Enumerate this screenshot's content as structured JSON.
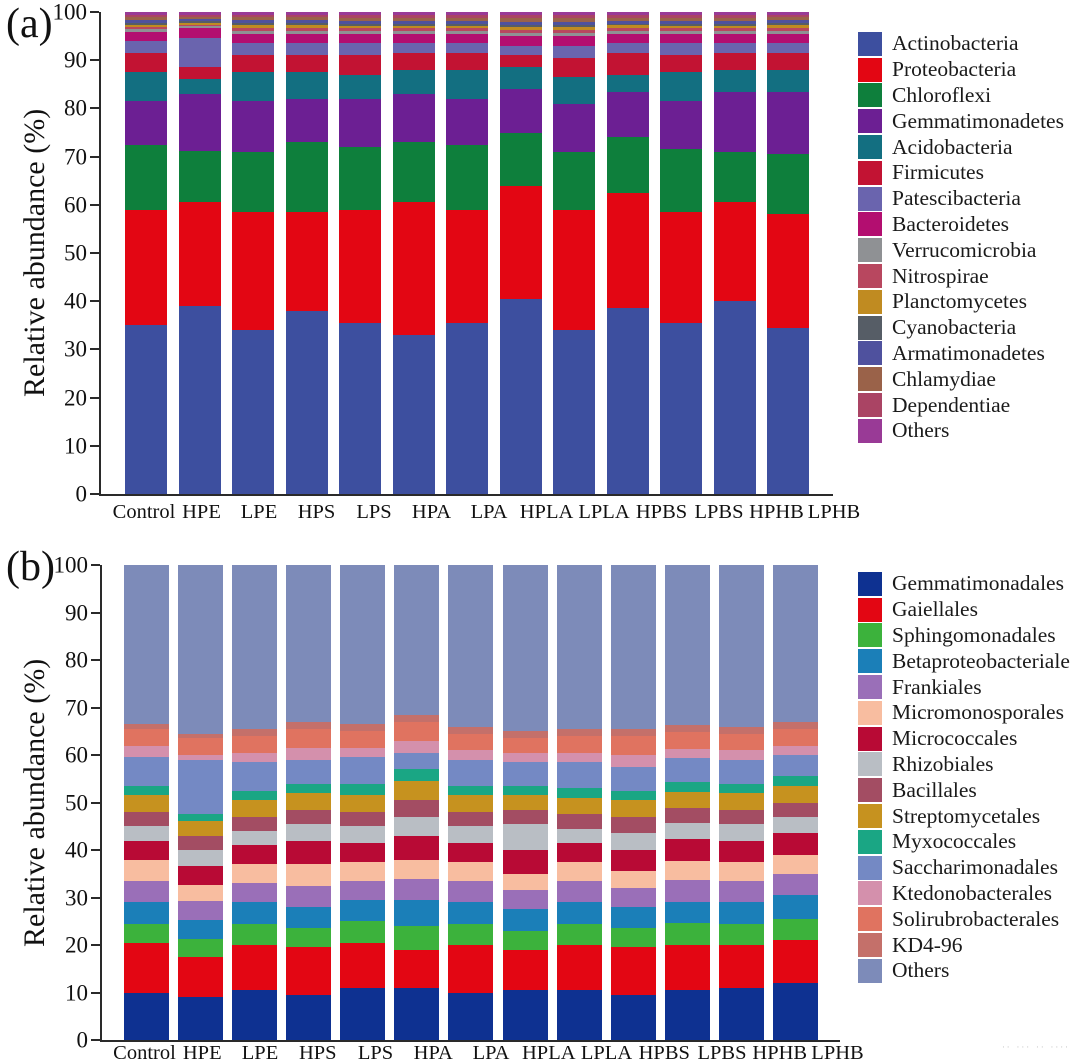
{
  "figure": {
    "watermark_text": "·· ··· ·· ····"
  },
  "chart_data": [
    {
      "panel_label": "(a)",
      "type": "bar",
      "subtype": "100-percent-stacked-vertical",
      "ylabel": "Relative abundance (%)",
      "xlabel": "",
      "ylim": [
        0,
        100
      ],
      "yticks": [
        0,
        10,
        20,
        30,
        40,
        50,
        60,
        70,
        80,
        90,
        100
      ],
      "grid": false,
      "legend_position": "right",
      "categories": [
        "Control",
        "HPE",
        "LPE",
        "HPS",
        "LPS",
        "HPA",
        "LPA",
        "HPLA",
        "LPLA",
        "HPBS",
        "LPBS",
        "HPHB",
        "LPHB"
      ],
      "series": [
        {
          "name": "Actinobacteria",
          "color": "#3D4F9F",
          "values": [
            35,
            39,
            34,
            38,
            35.5,
            33,
            35.5,
            40.5,
            34,
            38.5,
            35.5,
            40,
            34.5
          ]
        },
        {
          "name": "Proteobacteria",
          "color": "#E30613",
          "values": [
            24,
            21.5,
            24.5,
            20.5,
            23.5,
            27.5,
            23.5,
            23.5,
            25,
            24,
            23,
            20.5,
            23.5
          ]
        },
        {
          "name": "Chloroflexi",
          "color": "#0E7F3C",
          "values": [
            13.5,
            10.5,
            12.5,
            14.5,
            13,
            12.5,
            13.5,
            11,
            12,
            11.5,
            13,
            10.5,
            12.5
          ]
        },
        {
          "name": "Gemmatimonadetes",
          "color": "#6C1F93",
          "values": [
            9,
            12,
            10.5,
            9,
            10,
            10,
            9.5,
            9,
            10,
            9.5,
            10,
            12.5,
            13
          ]
        },
        {
          "name": "Acidobacteria",
          "color": "#136F81",
          "values": [
            6,
            3,
            6,
            5.5,
            5,
            5,
            6,
            4.5,
            5.5,
            3.5,
            6,
            4.5,
            4.5
          ]
        },
        {
          "name": "Firmicutes",
          "color": "#C21333",
          "values": [
            4,
            2.5,
            3.5,
            3.5,
            4,
            3.5,
            3.5,
            2.5,
            4,
            4.5,
            3.5,
            3.5,
            3.5
          ]
        },
        {
          "name": "Patescibacteria",
          "color": "#6A64AE",
          "values": [
            2.5,
            6,
            2.5,
            2.5,
            2.5,
            2,
            2,
            2,
            2.5,
            2,
            2.5,
            2,
            2
          ]
        },
        {
          "name": "Bacteroidetes",
          "color": "#B30E70",
          "values": [
            1.8,
            2,
            2,
            2,
            2,
            2,
            2,
            2,
            2,
            2,
            2,
            2,
            2
          ]
        },
        {
          "name": "Verrucomicrobia",
          "color": "#8F9194",
          "values": [
            0.6,
            0.4,
            0.6,
            0.6,
            0.6,
            0.6,
            0.6,
            0.7,
            0.7,
            0.6,
            0.6,
            0.6,
            0.6
          ]
        },
        {
          "name": "Nitrospirae",
          "color": "#B8475F",
          "values": [
            0.5,
            0.4,
            0.6,
            0.6,
            0.5,
            0.5,
            0.5,
            0.6,
            0.6,
            0.5,
            0.5,
            0.5,
            0.6
          ]
        },
        {
          "name": "Planctomycetes",
          "color": "#C08B21",
          "values": [
            0.5,
            0.4,
            0.6,
            0.6,
            0.6,
            0.6,
            0.6,
            0.6,
            0.6,
            0.6,
            0.6,
            0.6,
            0.6
          ]
        },
        {
          "name": "Cyanobacteria",
          "color": "#565D66",
          "values": [
            0.4,
            0.3,
            0.4,
            0.4,
            0.4,
            0.4,
            0.4,
            0.5,
            0.5,
            0.4,
            0.4,
            0.4,
            0.4
          ]
        },
        {
          "name": "Armatimonadetes",
          "color": "#4F519E",
          "values": [
            0.5,
            0.4,
            0.6,
            0.6,
            0.6,
            0.6,
            0.6,
            0.6,
            0.6,
            0.6,
            0.6,
            0.6,
            0.6
          ]
        },
        {
          "name": "Chlamydiae",
          "color": "#9A6249",
          "values": [
            0.6,
            0.5,
            0.6,
            0.6,
            0.6,
            0.6,
            0.6,
            0.7,
            0.7,
            0.6,
            0.6,
            0.6,
            0.6
          ]
        },
        {
          "name": "Dependentiae",
          "color": "#AA4464",
          "values": [
            0.5,
            0.4,
            0.5,
            0.5,
            0.5,
            0.5,
            0.5,
            0.6,
            0.6,
            0.5,
            0.5,
            0.5,
            0.5
          ]
        },
        {
          "name": "Others",
          "color": "#993A96",
          "values": [
            0.6,
            0.6,
            0.6,
            0.6,
            0.7,
            0.7,
            0.7,
            0.7,
            0.7,
            0.7,
            0.7,
            0.7,
            0.6
          ]
        }
      ]
    },
    {
      "panel_label": "(b)",
      "type": "bar",
      "subtype": "100-percent-stacked-vertical",
      "ylabel": "Relative abundance (%)",
      "xlabel": "",
      "ylim": [
        0,
        100
      ],
      "yticks": [
        0,
        10,
        20,
        30,
        40,
        50,
        60,
        70,
        80,
        90,
        100
      ],
      "grid": false,
      "legend_position": "right",
      "categories": [
        "Control",
        "HPE",
        "LPE",
        "HPS",
        "LPS",
        "HPA",
        "LPA",
        "HPLA",
        "LPLA",
        "HPBS",
        "LPBS",
        "HPHB",
        "LPHB"
      ],
      "series": [
        {
          "name": "Gemmatimonadales",
          "color": "#0E3191",
          "values": [
            10,
            9,
            10.5,
            9.5,
            11,
            11,
            10,
            10.5,
            10.5,
            9.5,
            10.5,
            11,
            12
          ]
        },
        {
          "name": "Gaiellales",
          "color": "#E30613",
          "values": [
            10.5,
            8.5,
            9.5,
            10,
            9.5,
            8,
            10,
            8.5,
            9.5,
            10,
            9.5,
            9,
            9
          ]
        },
        {
          "name": "Sphingomonadales",
          "color": "#3CB23C",
          "values": [
            4,
            3.7,
            4.5,
            4,
            4.5,
            5,
            4.5,
            4,
            4.5,
            4,
            4.5,
            4.5,
            4.5
          ]
        },
        {
          "name": "Betaproteobacteriale",
          "color": "#1B7FB8",
          "values": [
            4.5,
            4,
            4.5,
            4.5,
            4.5,
            5.5,
            4.5,
            4.5,
            4.5,
            4.5,
            4.5,
            4.5,
            5
          ]
        },
        {
          "name": "Frankiales",
          "color": "#9A6FB8",
          "values": [
            4.5,
            4,
            4,
            4.5,
            4,
            4.5,
            4.5,
            4,
            4.5,
            4,
            4.5,
            4.5,
            4.5
          ]
        },
        {
          "name": "Micromonosporales",
          "color": "#F8BDA0",
          "values": [
            4.5,
            3.4,
            4,
            4.5,
            4,
            4,
            4,
            3.5,
            4,
            3.5,
            4,
            4,
            4
          ]
        },
        {
          "name": "Micrococcales",
          "color": "#B80A35",
          "values": [
            4,
            4,
            4,
            5,
            4,
            5,
            4,
            5,
            4,
            4.5,
            4.5,
            4.5,
            4.5
          ]
        },
        {
          "name": "Rhizobiales",
          "color": "#B9BEC4",
          "values": [
            3,
            3.4,
            3,
            3.5,
            3.5,
            4,
            3.5,
            5.5,
            3,
            3.5,
            3.5,
            3.5,
            3.5
          ]
        },
        {
          "name": "Bacillales",
          "color": "#A34D63",
          "values": [
            3,
            3,
            3,
            3,
            3,
            3.5,
            3,
            3,
            3,
            3.5,
            3,
            3,
            3
          ]
        },
        {
          "name": "Streptomycetales",
          "color": "#C6921F",
          "values": [
            3.5,
            3,
            3.5,
            3.5,
            3.5,
            4,
            3.5,
            3,
            3.5,
            3.5,
            3.5,
            3.5,
            3.5
          ]
        },
        {
          "name": "Myxococcales",
          "color": "#1AA684",
          "values": [
            2,
            1.5,
            2,
            2,
            2.5,
            2.5,
            2,
            2,
            2,
            2,
            2,
            2,
            2
          ]
        },
        {
          "name": "Saccharimonadales",
          "color": "#7489C4",
          "values": [
            6,
            11.5,
            6,
            5,
            5.5,
            3.5,
            5.5,
            5,
            5.5,
            5,
            5,
            5,
            4.5
          ]
        },
        {
          "name": "Ktedonobacterales",
          "color": "#D490AC",
          "values": [
            2.5,
            1,
            2,
            2.5,
            2,
            2.5,
            2,
            2,
            2,
            2.5,
            2,
            2,
            2
          ]
        },
        {
          "name": "Solirubrobacterales",
          "color": "#E07360",
          "values": [
            3.5,
            3.5,
            3.5,
            4,
            3.5,
            4,
            3.5,
            3,
            3.5,
            4,
            3.5,
            3.5,
            3.5
          ]
        },
        {
          "name": "KD4-96",
          "color": "#C4706A",
          "values": [
            1,
            1,
            1.5,
            1.5,
            1.5,
            1.5,
            1.5,
            1.5,
            1.5,
            1.5,
            1.5,
            1.5,
            1.5
          ]
        },
        {
          "name": "Others",
          "color": "#7D8BB9",
          "values": [
            33.5,
            35.5,
            34.5,
            33,
            33.5,
            31.5,
            34,
            35,
            34.5,
            34.5,
            33.5,
            34,
            33
          ]
        }
      ]
    }
  ]
}
